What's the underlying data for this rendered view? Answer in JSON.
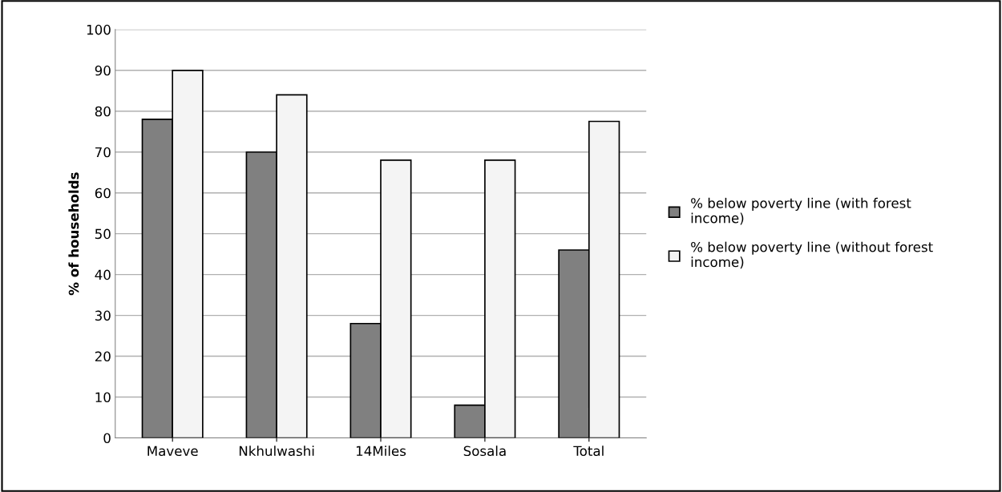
{
  "chart_data": {
    "type": "bar",
    "ylabel": "% of households",
    "categories": [
      "Maveve",
      "Nkhulwashi",
      "14Miles",
      "Sosala",
      "Total"
    ],
    "series": [
      {
        "name": "% below poverty line (with forest income)",
        "color": "#808080",
        "values": [
          78,
          70,
          28,
          8,
          46
        ]
      },
      {
        "name": "% below poverty line (without forest income)",
        "color": "#f4f4f4",
        "values": [
          90,
          84,
          68,
          68,
          77.5
        ]
      }
    ],
    "ylim": [
      0,
      100
    ],
    "yticks": [
      0,
      10,
      20,
      30,
      40,
      50,
      60,
      70,
      80,
      90,
      100
    ],
    "grid": "y",
    "legend": "right"
  }
}
